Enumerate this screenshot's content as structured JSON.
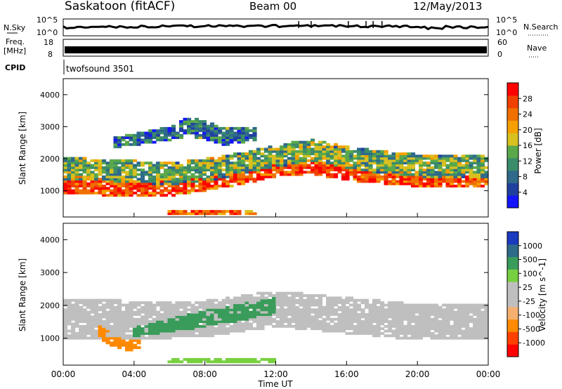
{
  "header": {
    "station": "Saskatoon (fitACF)",
    "beam": "Beam 00",
    "date": "12/May/2013"
  },
  "side_labels": {
    "nsky": "N.Sky",
    "freq_line1": "Freq.",
    "freq_line2": "[MHz]",
    "cpid": "CPID",
    "nsearch": "N.Search",
    "nave": "Nave"
  },
  "cpid_text": "twofsound 3501",
  "colors": {
    "power_scale": [
      "#1515ff",
      "#2040a0",
      "#2f6a8a",
      "#3a8c6a",
      "#5aa84a",
      "#d8c020",
      "#f5a000",
      "#f07000",
      "#f04000",
      "#ff0000"
    ],
    "velocity_scale": [
      "#ff0000",
      "#ff4000",
      "#ff8a00",
      "#f5b070",
      "#bfbfbf",
      "#bfbfbf",
      "#78d040",
      "#3a9c5a",
      "#2f6a8a",
      "#1a3ac0"
    ]
  },
  "chart_data": [
    {
      "type": "line",
      "id": "noise",
      "left_ticks": [
        "10^5",
        "10^0"
      ],
      "right_ticks": [
        "10^5",
        "10^0"
      ]
    },
    {
      "type": "line",
      "id": "freq",
      "left_ticks": [
        "18",
        "8"
      ],
      "right_ticks": [
        "60",
        "0"
      ]
    },
    {
      "type": "heatmap",
      "id": "power",
      "ylabel": "Slant Range [km]",
      "yticks": [
        "4000",
        "3000",
        "2000",
        "1000"
      ],
      "ylim": [
        180,
        4500
      ],
      "colorbar_label": "Power [dB]",
      "colorbar_ticks": [
        "28",
        "24",
        "20",
        "16",
        "12",
        "8",
        "4"
      ],
      "bands": [
        {
          "t": [
            0,
            2,
            4,
            6,
            8,
            10,
            12,
            14,
            16,
            18,
            20,
            22,
            24
          ],
          "center": [
            1200,
            1150,
            1080,
            1100,
            1250,
            1400,
            1650,
            1750,
            1550,
            1450,
            1350,
            1300,
            1300
          ],
          "half_width": [
            300,
            280,
            260,
            260,
            240,
            220,
            200,
            220,
            220,
            220,
            220,
            200,
            200
          ],
          "value": 27
        },
        {
          "t": [
            0,
            2,
            4,
            6,
            8,
            10,
            12,
            14,
            16,
            18,
            20,
            22,
            24
          ],
          "center": [
            1700,
            1650,
            1600,
            1550,
            1650,
            1850,
            2100,
            2250,
            2050,
            1900,
            1800,
            1750,
            1750
          ],
          "half_width": [
            350,
            350,
            350,
            350,
            350,
            350,
            350,
            350,
            350,
            350,
            350,
            350,
            350
          ],
          "value": 14
        },
        {
          "t": [
            2.8,
            4,
            6,
            7,
            8,
            9,
            10,
            11
          ],
          "center": [
            2500,
            2600,
            2800,
            3000,
            2900,
            2700,
            2750,
            2800
          ],
          "half_width": [
            150,
            180,
            220,
            300,
            300,
            280,
            250,
            200
          ],
          "value": 8
        },
        {
          "t": [
            6,
            7,
            8,
            9,
            10,
            11
          ],
          "center": [
            300,
            320,
            330,
            330,
            320,
            300
          ],
          "half_width": [
            60,
            70,
            70,
            60,
            60,
            50
          ],
          "value": 26
        }
      ]
    },
    {
      "type": "heatmap",
      "id": "velocity",
      "ylabel": "Slant Range [km]",
      "yticks": [
        "4000",
        "3000",
        "2000",
        "1000"
      ],
      "ylim": [
        180,
        4500
      ],
      "colorbar_label": "Velocity [m s^-1]",
      "colorbar_ticks": [
        "1000",
        "500",
        "100",
        "25",
        "-25",
        "-100",
        "-500",
        "-1000"
      ],
      "bands": [
        {
          "t": [
            0,
            4,
            8,
            12,
            16,
            20,
            24
          ],
          "center": [
            1600,
            1550,
            1600,
            1900,
            1700,
            1500,
            1500
          ],
          "half_width": [
            600,
            600,
            550,
            550,
            550,
            550,
            550
          ],
          "value": 0
        },
        {
          "t": [
            2,
            2.8,
            3.6,
            4.3
          ],
          "center": [
            1250,
            900,
            780,
            820
          ],
          "half_width": [
            200,
            200,
            150,
            150
          ],
          "value": -420
        },
        {
          "t": [
            4,
            6,
            8,
            10,
            12
          ],
          "center": [
            1200,
            1400,
            1600,
            1800,
            2000
          ],
          "half_width": [
            150,
            200,
            260,
            260,
            250
          ],
          "value": 300
        },
        {
          "t": [
            6,
            8,
            10,
            12
          ],
          "center": [
            300,
            330,
            350,
            330
          ],
          "half_width": [
            70,
            70,
            70,
            60
          ],
          "value": 60
        }
      ]
    }
  ],
  "xaxis": {
    "label": "Time UT",
    "ticks": [
      "00:00",
      "04:00",
      "08:00",
      "12:00",
      "16:00",
      "20:00",
      "00:00"
    ],
    "range_hours": [
      0,
      24
    ]
  }
}
